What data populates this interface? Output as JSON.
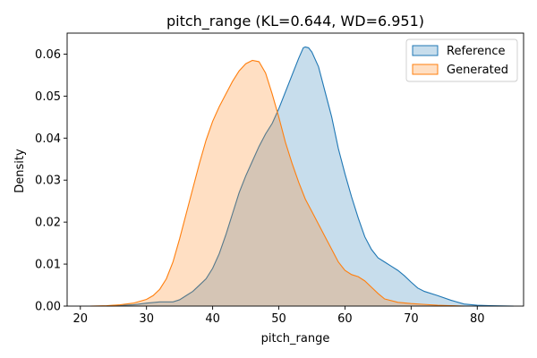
{
  "chart_data": {
    "type": "area",
    "title": "pitch_range (KL=0.644, WD=6.951)",
    "xlabel": "pitch_range",
    "ylabel": "Density",
    "xlim": [
      18,
      87
    ],
    "ylim": [
      0,
      0.065
    ],
    "xticks": [
      20,
      30,
      40,
      50,
      60,
      70,
      80
    ],
    "yticks": [
      0.0,
      0.01,
      0.02,
      0.03,
      0.04,
      0.05,
      0.06
    ],
    "ytick_labels": [
      "0.00",
      "0.01",
      "0.02",
      "0.03",
      "0.04",
      "0.05",
      "0.06"
    ],
    "legend_position": "upper right",
    "grid": false,
    "series": [
      {
        "name": "Reference",
        "color": "#1f77b4",
        "x": [
          24,
          28,
          30,
          32,
          34,
          35,
          36,
          37,
          38,
          39,
          40,
          41,
          42,
          43,
          44,
          45,
          46,
          47,
          48,
          49,
          50,
          51,
          52,
          53,
          53.7,
          54,
          54.5,
          55,
          56,
          57,
          58,
          59,
          60,
          61,
          62,
          63,
          64,
          65,
          66,
          67,
          68,
          69,
          70,
          71,
          72,
          74,
          76,
          78,
          80,
          82,
          85.5
        ],
        "y": [
          0.0,
          0.0003,
          0.0007,
          0.001,
          0.001,
          0.0015,
          0.0025,
          0.0035,
          0.005,
          0.0065,
          0.009,
          0.0125,
          0.017,
          0.022,
          0.027,
          0.031,
          0.0345,
          0.038,
          0.041,
          0.0435,
          0.047,
          0.051,
          0.055,
          0.059,
          0.0615,
          0.0617,
          0.0615,
          0.0605,
          0.057,
          0.051,
          0.045,
          0.0375,
          0.0315,
          0.026,
          0.021,
          0.0165,
          0.0135,
          0.0115,
          0.0105,
          0.0095,
          0.0085,
          0.0072,
          0.0057,
          0.0043,
          0.0035,
          0.0025,
          0.0014,
          0.0005,
          0.0002,
          0.0001,
          0.0
        ]
      },
      {
        "name": "Generated",
        "color": "#ff7f0e",
        "x": [
          21.5,
          24,
          26,
          28,
          30,
          31,
          32,
          33,
          34,
          35,
          36,
          37,
          38,
          39,
          40,
          41,
          42,
          43,
          44,
          45,
          46,
          47,
          48,
          49,
          50,
          51,
          52,
          53,
          54,
          55,
          56,
          57,
          58,
          59,
          60,
          61,
          62,
          63,
          64,
          65,
          66,
          68,
          70,
          72,
          74,
          76,
          78
        ],
        "y": [
          0.0,
          0.0001,
          0.0003,
          0.0007,
          0.0016,
          0.0025,
          0.004,
          0.0065,
          0.0105,
          0.016,
          0.022,
          0.028,
          0.034,
          0.0395,
          0.044,
          0.0475,
          0.0505,
          0.0535,
          0.056,
          0.0577,
          0.0585,
          0.0582,
          0.0555,
          0.0505,
          0.045,
          0.039,
          0.034,
          0.0295,
          0.0255,
          0.0225,
          0.0195,
          0.0165,
          0.0135,
          0.0105,
          0.0085,
          0.0075,
          0.007,
          0.006,
          0.0045,
          0.003,
          0.0017,
          0.0009,
          0.0006,
          0.0004,
          0.0002,
          0.0001,
          0.0
        ]
      }
    ]
  }
}
